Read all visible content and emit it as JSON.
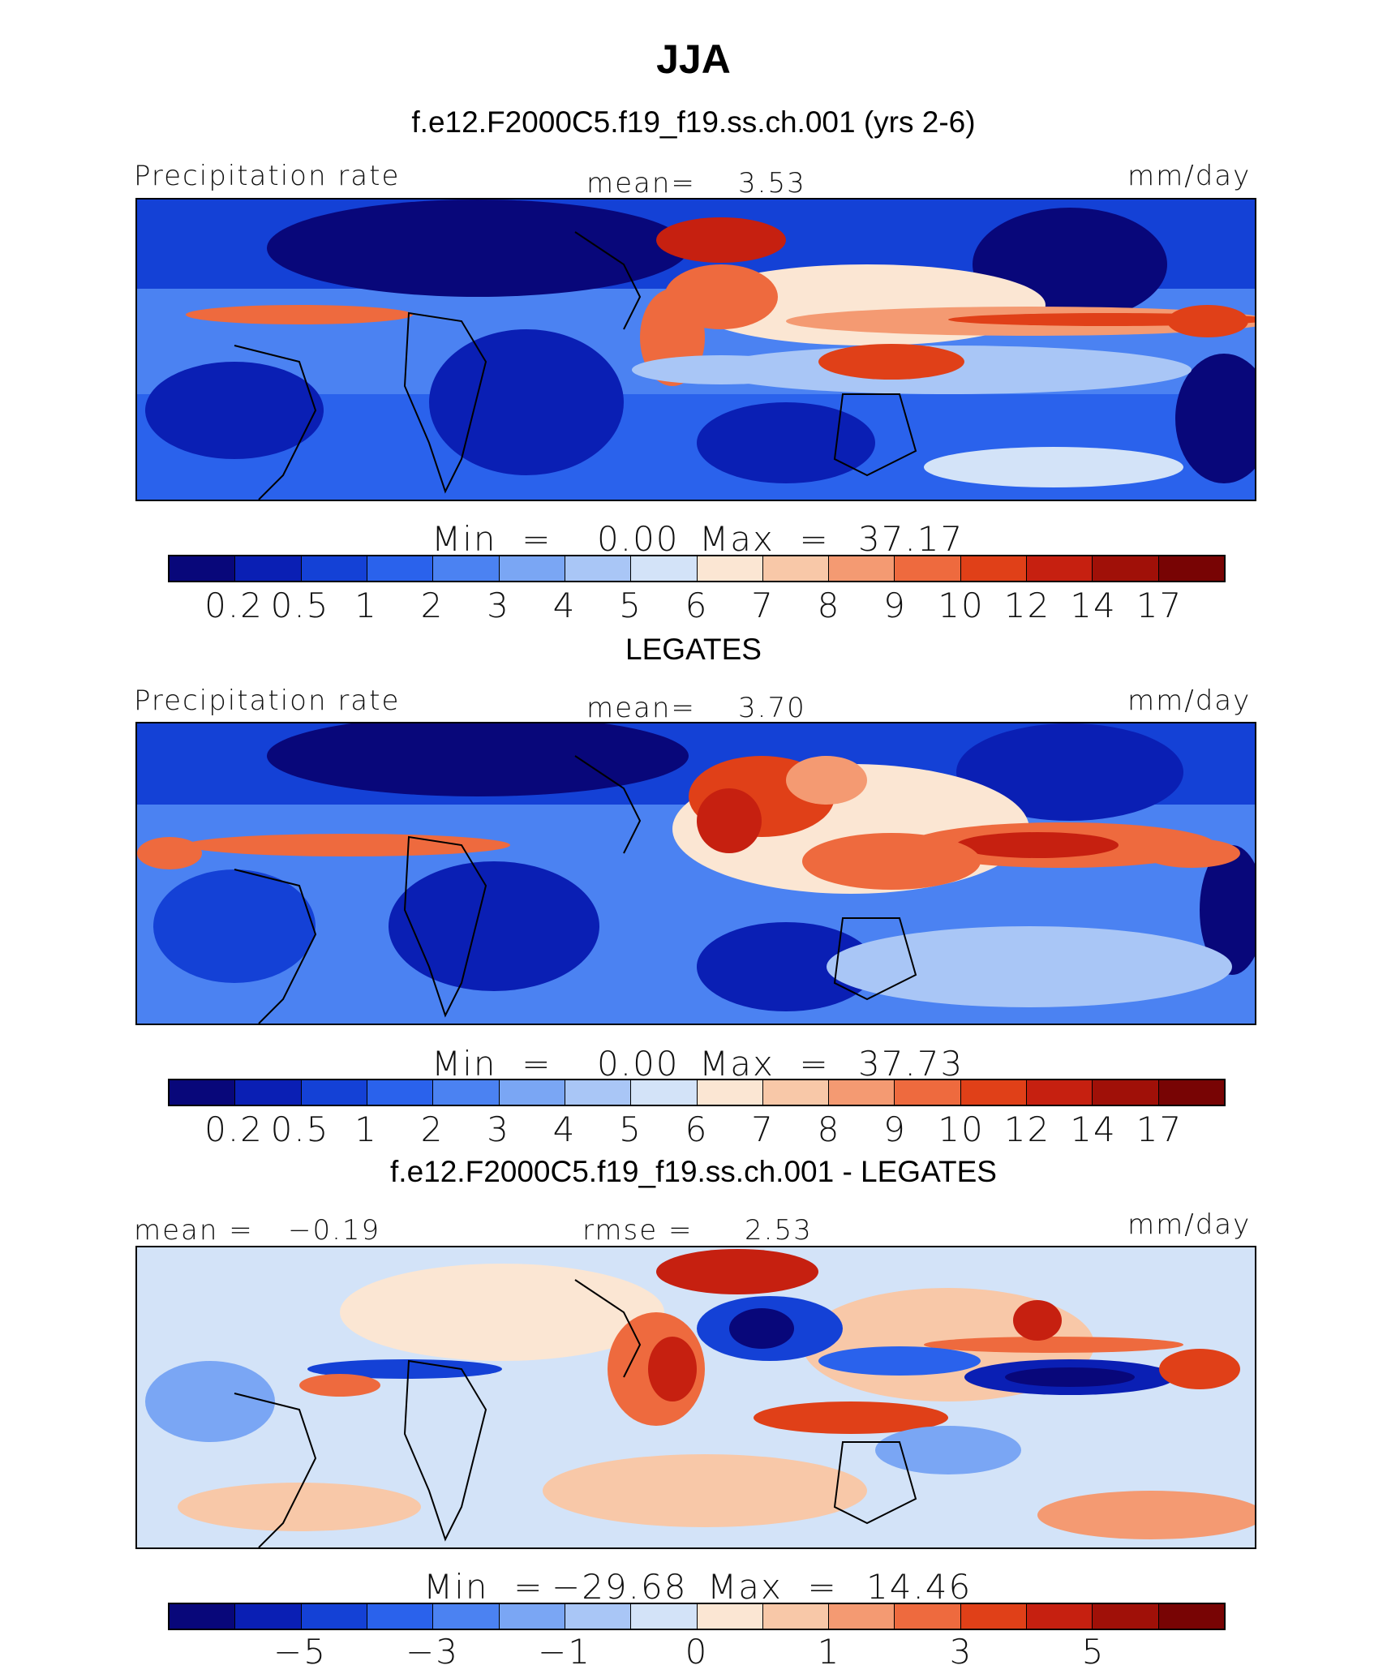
{
  "header": {
    "title": "JJA",
    "case_subtitle": "f.e12.F2000C5.f19_f19.ss.ch.001 (yrs 2-6)"
  },
  "palette": [
    "#08077a",
    "#0a1fb4",
    "#1441d6",
    "#2a62ec",
    "#4b82f2",
    "#7aa6f4",
    "#a9c6f6",
    "#d3e3f8",
    "#fbe6d3",
    "#f8c8a8",
    "#f49a72",
    "#ee6a3e",
    "#e04018",
    "#c62010",
    "#a01008",
    "#780404"
  ],
  "panels": [
    {
      "id": "model",
      "variable": "Precipitation rate",
      "units": "mm/day",
      "stat1_label": "mean=",
      "stat1_value": "3.53",
      "min_label": "Min  =",
      "min_value": "0.00",
      "max_label": "Max  =",
      "max_value": "37.17",
      "ticks": [
        "0.2",
        "0.5",
        "1",
        "2",
        "3",
        "4",
        "5",
        "6",
        "7",
        "8",
        "9",
        "10",
        "12",
        "14",
        "17"
      ]
    },
    {
      "id": "obs",
      "heading": "LEGATES",
      "variable": "Precipitation rate",
      "units": "mm/day",
      "stat1_label": "mean=",
      "stat1_value": "3.70",
      "min_label": "Min  =",
      "min_value": "0.00",
      "max_label": "Max  =",
      "max_value": "37.73",
      "ticks": [
        "0.2",
        "0.5",
        "1",
        "2",
        "3",
        "4",
        "5",
        "6",
        "7",
        "8",
        "9",
        "10",
        "12",
        "14",
        "17"
      ]
    },
    {
      "id": "diff",
      "heading": "f.e12.F2000C5.f19_f19.ss.ch.001 - LEGATES",
      "units": "mm/day",
      "stat0_label": "mean =",
      "stat0_value": "−0.19",
      "stat1_label": "rmse =",
      "stat1_value": "2.53",
      "min_label": "Min  =",
      "min_value": "−29.68",
      "max_label": "Max  =",
      "max_value": "14.46",
      "ticks": [
        "−5",
        "−3",
        "−1",
        "0",
        "1",
        "3",
        "5"
      ]
    }
  ]
}
